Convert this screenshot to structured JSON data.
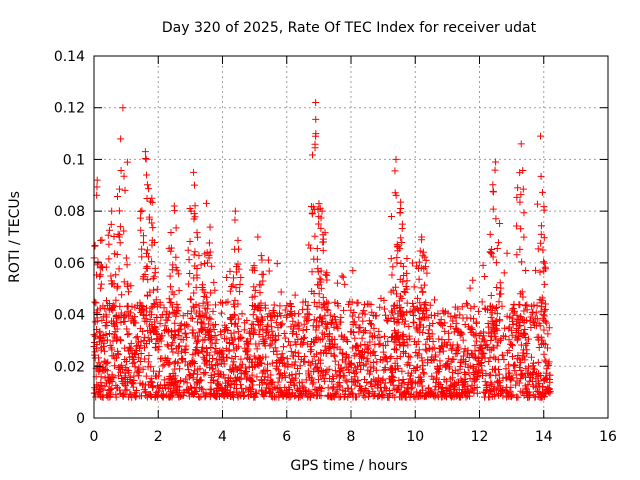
{
  "chart_data": {
    "type": "scatter",
    "title": "Day 320 of 2025, Rate Of TEC Index for receiver udat",
    "xlabel": "GPS time / hours",
    "ylabel": "ROTI / TECUs",
    "xlim": [
      0,
      16
    ],
    "ylim": [
      0,
      0.14
    ],
    "xticks": [
      0,
      2,
      4,
      6,
      8,
      10,
      12,
      14,
      16
    ],
    "yticks": [
      0,
      0.02,
      0.04,
      0.06,
      0.08,
      0.1,
      0.12,
      0.14
    ],
    "xtick_labels": [
      "0",
      "2",
      "4",
      "6",
      "8",
      "10",
      "12",
      "14",
      "16"
    ],
    "ytick_labels": [
      "0",
      "0.02",
      "0.04",
      "0.06",
      "0.08",
      "0.1",
      "0.12",
      "0.14"
    ],
    "grid": true,
    "marker": "+",
    "series": [
      {
        "name": "ROTI",
        "color": "#ff0000",
        "x_range": [
          0.0,
          14.2
        ],
        "typical_range": [
          0.008,
          0.045
        ],
        "peaks": [
          {
            "x": 0.1,
            "y": 0.092
          },
          {
            "x": 0.55,
            "y": 0.08
          },
          {
            "x": 0.9,
            "y": 0.12
          },
          {
            "x": 1.6,
            "y": 0.103
          },
          {
            "x": 1.8,
            "y": 0.085
          },
          {
            "x": 2.5,
            "y": 0.082
          },
          {
            "x": 3.1,
            "y": 0.095
          },
          {
            "x": 3.5,
            "y": 0.083
          },
          {
            "x": 4.4,
            "y": 0.08
          },
          {
            "x": 5.1,
            "y": 0.07
          },
          {
            "x": 6.9,
            "y": 0.122
          },
          {
            "x": 7.1,
            "y": 0.08
          },
          {
            "x": 9.4,
            "y": 0.1
          },
          {
            "x": 9.6,
            "y": 0.075
          },
          {
            "x": 10.2,
            "y": 0.07
          },
          {
            "x": 12.5,
            "y": 0.099
          },
          {
            "x": 13.3,
            "y": 0.106
          },
          {
            "x": 13.9,
            "y": 0.109
          }
        ]
      }
    ]
  }
}
